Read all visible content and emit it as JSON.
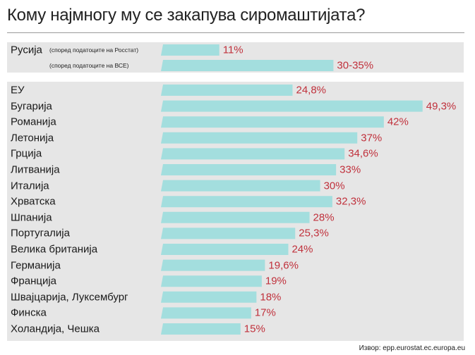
{
  "chart_data": {
    "type": "bar",
    "title": "Кому најмногу му се закапува сиромаштијата?",
    "highlight": {
      "label": "Русија",
      "rows": [
        {
          "sublabel": "(според податоците на Росстат)",
          "value": 11,
          "display": "11%"
        },
        {
          "sublabel": "(според податоците на ВСЕ)",
          "value": 32.5,
          "display": "30-35%"
        }
      ]
    },
    "categories": [
      "ЕУ",
      "Бугарија",
      "Романија",
      "Летонија",
      "Грција",
      "Литванија",
      "Италија",
      "Хрватска",
      "Шпанија",
      "Португалија",
      "Велика британија",
      "Германија",
      "Франција",
      "Швајцарија, Луксембург",
      "Финска",
      "Холандија, Чешка"
    ],
    "values": [
      24.8,
      49.3,
      42,
      37,
      34.6,
      33,
      30,
      32.3,
      28,
      25.3,
      24,
      19.6,
      19,
      18,
      17,
      15
    ],
    "display_values": [
      "24,8%",
      "49,3%",
      "42%",
      "37%",
      "34,6%",
      "33%",
      "30%",
      "32,3%",
      "28%",
      "25,3%",
      "24%",
      "19,6%",
      "19%",
      "18%",
      "17%",
      "15%"
    ],
    "xlim": [
      0,
      50
    ],
    "colors": {
      "bar": "#a3dede",
      "value_text": "#c0313c",
      "band": "#e6e6e6"
    }
  },
  "source": "Извор: epp.eurostat.ec.europa.eu"
}
